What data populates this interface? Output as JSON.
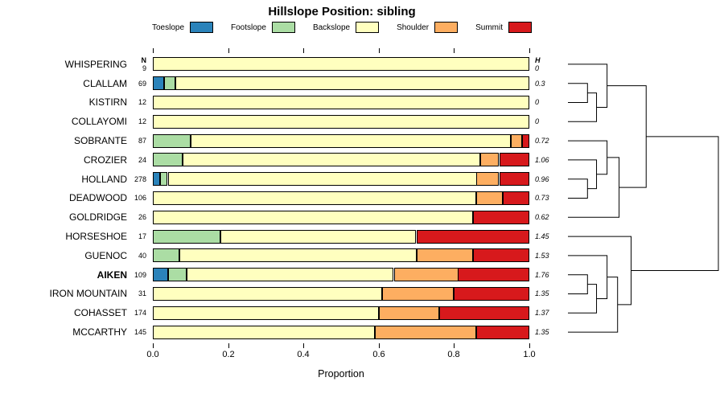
{
  "chart_data": {
    "type": "bar",
    "stacked": true,
    "orientation": "horizontal",
    "title": "Hillslope Position: sibling",
    "xlabel": "Proportion",
    "xlim": [
      0,
      1
    ],
    "grid": false,
    "legend_position": "top",
    "x_ticks": [
      "0.0",
      "0.2",
      "0.4",
      "0.6",
      "0.8",
      "1.0"
    ],
    "x_tick_values": [
      0,
      0.2,
      0.4,
      0.6,
      0.8,
      1.0
    ],
    "n_header": "N",
    "h_header": "H",
    "series_names": [
      "Toeslope",
      "Footslope",
      "Backslope",
      "Shoulder",
      "Summit"
    ],
    "series_colors": [
      "#2B83BA",
      "#ABDDA4",
      "#FFFFBF",
      "#FDAE61",
      "#D7191C"
    ],
    "rows": [
      {
        "label": "WHISPERING",
        "n": 9,
        "h": "0",
        "bold": false,
        "values": [
          0,
          0,
          1.0,
          0,
          0
        ]
      },
      {
        "label": "CLALLAM",
        "n": 69,
        "h": "0.3",
        "bold": false,
        "values": [
          0.03,
          0.03,
          0.94,
          0,
          0
        ]
      },
      {
        "label": "KISTIRN",
        "n": 12,
        "h": "0",
        "bold": false,
        "values": [
          0,
          0,
          1.0,
          0,
          0
        ]
      },
      {
        "label": "COLLAYOMI",
        "n": 12,
        "h": "0",
        "bold": false,
        "values": [
          0,
          0,
          1.0,
          0,
          0
        ]
      },
      {
        "label": "SOBRANTE",
        "n": 87,
        "h": "0.72",
        "bold": false,
        "values": [
          0,
          0.1,
          0.85,
          0.03,
          0.02
        ]
      },
      {
        "label": "CROZIER",
        "n": 24,
        "h": "1.06",
        "bold": false,
        "values": [
          0,
          0.08,
          0.79,
          0.05,
          0.08
        ]
      },
      {
        "label": "HOLLAND",
        "n": 278,
        "h": "0.96",
        "bold": false,
        "values": [
          0.02,
          0.02,
          0.82,
          0.06,
          0.08
        ]
      },
      {
        "label": "DEADWOOD",
        "n": 106,
        "h": "0.73",
        "bold": false,
        "values": [
          0,
          0,
          0.86,
          0.07,
          0.07
        ]
      },
      {
        "label": "GOLDRIDGE",
        "n": 26,
        "h": "0.62",
        "bold": false,
        "values": [
          0,
          0,
          0.85,
          0,
          0.15
        ]
      },
      {
        "label": "HORSESHOE",
        "n": 17,
        "h": "1.45",
        "bold": false,
        "values": [
          0,
          0.18,
          0.52,
          0,
          0.3
        ]
      },
      {
        "label": "GUENOC",
        "n": 40,
        "h": "1.53",
        "bold": false,
        "values": [
          0,
          0.07,
          0.63,
          0.15,
          0.15
        ]
      },
      {
        "label": "AIKEN",
        "n": 109,
        "h": "1.76",
        "bold": true,
        "values": [
          0.04,
          0.05,
          0.55,
          0.17,
          0.19
        ]
      },
      {
        "label": "IRON MOUNTAIN",
        "n": 31,
        "h": "1.35",
        "bold": false,
        "values": [
          0,
          0,
          0.61,
          0.19,
          0.2
        ]
      },
      {
        "label": "COHASSET",
        "n": 174,
        "h": "1.37",
        "bold": false,
        "values": [
          0,
          0,
          0.6,
          0.16,
          0.24
        ]
      },
      {
        "label": "MCCARTHY",
        "n": 145,
        "h": "1.35",
        "bold": false,
        "values": [
          0,
          0,
          0.59,
          0.27,
          0.14
        ]
      }
    ],
    "dendrogram": {
      "merges": [
        {
          "id": "M1",
          "a": "L1",
          "b": "L2",
          "h": 0.13
        },
        {
          "id": "M2",
          "a": "M1",
          "b": "L3",
          "h": 0.19
        },
        {
          "id": "M3",
          "a": "L0",
          "b": "M2",
          "h": 0.26
        },
        {
          "id": "M4",
          "a": "L6",
          "b": "L7",
          "h": 0.13
        },
        {
          "id": "M5",
          "a": "L5",
          "b": "M4",
          "h": 0.19
        },
        {
          "id": "M6",
          "a": "L4",
          "b": "M5",
          "h": 0.26
        },
        {
          "id": "M7",
          "a": "M6",
          "b": "L8",
          "h": 0.34
        },
        {
          "id": "M8",
          "a": "L11",
          "b": "L12",
          "h": 0.13
        },
        {
          "id": "M9",
          "a": "M8",
          "b": "L13",
          "h": 0.19
        },
        {
          "id": "M10",
          "a": "L10",
          "b": "M9",
          "h": 0.26
        },
        {
          "id": "M11",
          "a": "M10",
          "b": "L14",
          "h": 0.33
        },
        {
          "id": "M12",
          "a": "L9",
          "b": "M11",
          "h": 0.42
        },
        {
          "id": "M13",
          "a": "M3",
          "b": "M7",
          "h": 0.52
        },
        {
          "id": "M14",
          "a": "M13",
          "b": "M12",
          "h": 1.0
        }
      ]
    }
  }
}
